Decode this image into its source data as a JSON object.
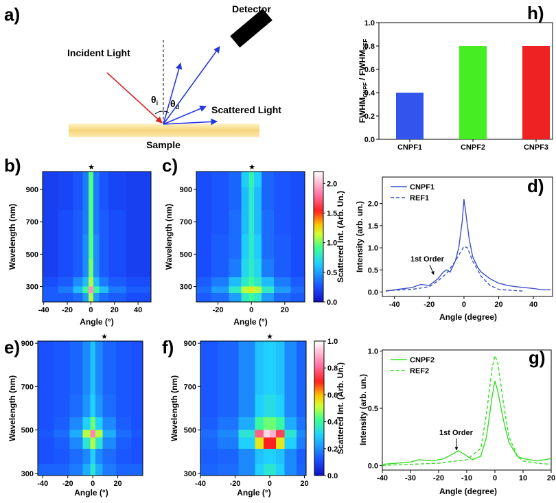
{
  "diagram": {
    "label": "a)",
    "detector": "Detector",
    "incident": "Incident Light",
    "scattered": "Scattered Light",
    "sample": "Sample",
    "theta_i": {
      "symbol": "θ",
      "sub": "i"
    },
    "theta_d": {
      "symbol": "θ",
      "sub": "d"
    }
  },
  "chart_data": [
    {
      "type": "heatmap",
      "label": "b)",
      "marker": "★",
      "x_label": "Angle (°)",
      "y_label": "Wavelength (nm)",
      "xlim": [
        -41,
        51
      ],
      "ylim": [
        205,
        1010
      ],
      "xticks": [
        -40,
        -20,
        0,
        20,
        40
      ],
      "yticks": [
        300,
        500,
        700,
        900
      ],
      "clim": [
        0,
        2.2
      ],
      "x": [
        -35,
        -20,
        -10,
        -4,
        0,
        4,
        10,
        20,
        40
      ],
      "y": [
        240,
        285,
        320,
        400,
        550,
        700,
        850,
        980
      ],
      "z": [
        [
          0.3,
          0.3,
          0.35,
          0.5,
          1.1,
          0.5,
          0.35,
          0.3,
          0.25
        ],
        [
          0.3,
          0.4,
          0.6,
          0.9,
          1.9,
          0.9,
          0.6,
          0.4,
          0.3
        ],
        [
          0.25,
          0.3,
          0.45,
          0.6,
          1.1,
          0.6,
          0.4,
          0.3,
          0.25
        ],
        [
          0.2,
          0.25,
          0.3,
          0.45,
          1.0,
          0.45,
          0.3,
          0.25,
          0.2
        ],
        [
          0.2,
          0.25,
          0.3,
          0.45,
          0.95,
          0.45,
          0.3,
          0.25,
          0.2
        ],
        [
          0.2,
          0.25,
          0.3,
          0.4,
          0.95,
          0.4,
          0.3,
          0.25,
          0.2
        ],
        [
          0.2,
          0.22,
          0.28,
          0.4,
          0.95,
          0.4,
          0.28,
          0.22,
          0.2
        ],
        [
          0.2,
          0.22,
          0.28,
          0.4,
          0.95,
          0.4,
          0.28,
          0.22,
          0.2
        ]
      ]
    },
    {
      "type": "heatmap",
      "label": "c)",
      "marker": "★",
      "x_label": "Angle (°)",
      "y_label": "Wavelength (nm)",
      "xlim": [
        -33,
        32
      ],
      "ylim": [
        205,
        1010
      ],
      "xticks": [
        -20,
        0,
        20
      ],
      "yticks": [
        300,
        500,
        700,
        900
      ],
      "clim": [
        0,
        2.2
      ],
      "colorbar_label": "Scattered Int. (Arb. Un.)",
      "cticks": [
        {
          "value": 0,
          "label": "0.0"
        },
        {
          "value": 0.5,
          "label": "0.5"
        },
        {
          "value": 1,
          "label": "1.0"
        },
        {
          "value": 1.5,
          "label": "1.5"
        },
        {
          "value": 2,
          "label": "2.0"
        }
      ],
      "x": [
        -30,
        -18,
        -9,
        -3,
        0,
        3,
        9,
        18,
        29
      ],
      "y": [
        240,
        285,
        320,
        400,
        550,
        700,
        850,
        980
      ],
      "z": [
        [
          0.3,
          0.35,
          0.5,
          0.8,
          0.9,
          0.8,
          0.5,
          0.35,
          0.3
        ],
        [
          0.35,
          0.5,
          0.8,
          1.1,
          1.2,
          1.1,
          0.8,
          0.5,
          0.35
        ],
        [
          0.3,
          0.4,
          0.6,
          0.8,
          0.9,
          0.8,
          0.6,
          0.4,
          0.3
        ],
        [
          0.25,
          0.3,
          0.4,
          0.7,
          0.8,
          0.7,
          0.4,
          0.3,
          0.25
        ],
        [
          0.25,
          0.3,
          0.35,
          0.65,
          0.8,
          0.65,
          0.35,
          0.3,
          0.25
        ],
        [
          0.25,
          0.28,
          0.35,
          0.6,
          0.8,
          0.6,
          0.35,
          0.28,
          0.25
        ],
        [
          0.25,
          0.28,
          0.33,
          0.6,
          0.8,
          0.6,
          0.33,
          0.28,
          0.25
        ],
        [
          0.25,
          0.28,
          0.33,
          0.65,
          0.85,
          0.65,
          0.33,
          0.28,
          0.25
        ]
      ]
    },
    {
      "type": "line",
      "label": "d)",
      "x_label": "Angle (degree)",
      "y_label": "Intensity (arb. un.)",
      "annotation": "1st Order",
      "xlim": [
        -47,
        51
      ],
      "ylim": [
        -0.1,
        2.6
      ],
      "xticks": [
        -40,
        -20,
        0,
        20,
        40
      ],
      "yticks": [
        {
          "value": 0,
          "label": "0.0"
        },
        {
          "value": 0.5,
          "label": "0.5"
        },
        {
          "value": 1,
          "label": "1.0"
        },
        {
          "value": 1.5,
          "label": "1.5"
        },
        {
          "value": 2,
          "label": "2.0"
        }
      ],
      "series": [
        {
          "name": "CNPF1",
          "color": "#3a4fc9",
          "dashed": false,
          "x": [
            -45,
            -40,
            -30,
            -25,
            -20,
            -15,
            -12,
            -10,
            -8,
            -5,
            -3,
            -1,
            0,
            1,
            3,
            5,
            8,
            10,
            15,
            20,
            25,
            30,
            35,
            40,
            45,
            50
          ],
          "values": [
            0.02,
            0.05,
            0.1,
            0.17,
            0.15,
            0.3,
            0.45,
            0.5,
            0.45,
            0.7,
            1.0,
            1.6,
            2.1,
            1.8,
            1.2,
            0.8,
            0.55,
            0.45,
            0.3,
            0.2,
            0.15,
            0.12,
            0.1,
            0.08,
            0.05,
            0.05
          ]
        },
        {
          "name": "REF1",
          "color": "#3a4fc9",
          "dashed": true,
          "x": [
            -45,
            -30,
            -20,
            -15,
            -10,
            -5,
            0,
            2,
            5,
            10,
            15,
            20,
            30,
            35
          ],
          "values": [
            0.03,
            0.06,
            0.12,
            0.25,
            0.42,
            0.7,
            1.03,
            1.0,
            0.7,
            0.35,
            0.15,
            0.06,
            0.03,
            0.02
          ]
        }
      ]
    },
    {
      "type": "heatmap",
      "label": "e)",
      "marker": "★",
      "x_label": "Angle (°)",
      "y_label": "Wavelength (nm)",
      "xlim": [
        -44,
        40
      ],
      "ylim": [
        290,
        910
      ],
      "xticks": [
        -40,
        -20,
        0,
        20
      ],
      "yticks": [
        300,
        500,
        700,
        900
      ],
      "clim": [
        0,
        1
      ],
      "x": [
        -38,
        -25,
        -12,
        -4,
        0,
        4,
        12,
        25,
        37
      ],
      "y": [
        310,
        380,
        450,
        485,
        520,
        600,
        730,
        870
      ],
      "z": [
        [
          0.15,
          0.15,
          0.18,
          0.25,
          0.35,
          0.25,
          0.18,
          0.15,
          0.15
        ],
        [
          0.12,
          0.13,
          0.16,
          0.2,
          0.3,
          0.2,
          0.16,
          0.13,
          0.12
        ],
        [
          0.12,
          0.14,
          0.2,
          0.35,
          0.5,
          0.35,
          0.2,
          0.14,
          0.12
        ],
        [
          0.13,
          0.16,
          0.25,
          0.5,
          0.85,
          0.5,
          0.25,
          0.16,
          0.13
        ],
        [
          0.12,
          0.14,
          0.2,
          0.3,
          0.45,
          0.3,
          0.2,
          0.14,
          0.12
        ],
        [
          0.12,
          0.13,
          0.16,
          0.22,
          0.3,
          0.22,
          0.16,
          0.13,
          0.12
        ],
        [
          0.12,
          0.13,
          0.15,
          0.2,
          0.28,
          0.2,
          0.15,
          0.13,
          0.12
        ],
        [
          0.12,
          0.13,
          0.15,
          0.2,
          0.28,
          0.2,
          0.15,
          0.13,
          0.12
        ]
      ]
    },
    {
      "type": "heatmap",
      "label": "f)",
      "marker": "★",
      "x_label": "Angle (°)",
      "y_label": "Wavelength (nm)",
      "xlim": [
        -40,
        21
      ],
      "ylim": [
        290,
        910
      ],
      "xticks": [
        -40,
        -20,
        0,
        20
      ],
      "yticks": [
        300,
        500,
        700,
        900
      ],
      "clim": [
        0,
        1
      ],
      "colorbar_label": "Scattered Int. (Arb. Un.)",
      "cticks": [
        {
          "value": 0,
          "label": "0.0"
        },
        {
          "value": 0.2,
          "label": "0.2"
        },
        {
          "value": 0.4,
          "label": "0.4"
        },
        {
          "value": 0.6,
          "label": "0.6"
        },
        {
          "value": 0.8,
          "label": "0.8"
        },
        {
          "value": 1,
          "label": "1.0"
        }
      ],
      "x": [
        -36,
        -24,
        -12,
        -5,
        -2,
        2,
        5,
        12,
        19
      ],
      "y": [
        310,
        380,
        450,
        485,
        520,
        600,
        730,
        870
      ],
      "z": [
        [
          0.15,
          0.16,
          0.2,
          0.3,
          0.35,
          0.35,
          0.3,
          0.2,
          0.15
        ],
        [
          0.14,
          0.15,
          0.2,
          0.28,
          0.3,
          0.3,
          0.28,
          0.2,
          0.14
        ],
        [
          0.15,
          0.18,
          0.3,
          0.55,
          0.7,
          0.7,
          0.55,
          0.3,
          0.18
        ],
        [
          0.16,
          0.2,
          0.35,
          0.8,
          0.95,
          0.9,
          0.75,
          0.35,
          0.2
        ],
        [
          0.14,
          0.17,
          0.25,
          0.4,
          0.45,
          0.45,
          0.4,
          0.25,
          0.17
        ],
        [
          0.13,
          0.15,
          0.2,
          0.3,
          0.33,
          0.33,
          0.3,
          0.2,
          0.15
        ],
        [
          0.13,
          0.15,
          0.2,
          0.28,
          0.3,
          0.3,
          0.28,
          0.2,
          0.15
        ],
        [
          0.13,
          0.15,
          0.2,
          0.28,
          0.3,
          0.3,
          0.28,
          0.2,
          0.15
        ]
      ]
    },
    {
      "type": "line",
      "label": "g)",
      "x_label": "Angle (degree)",
      "y_label": "Intensity (arb. un.)",
      "annotation": "1st Order",
      "xlim": [
        -40,
        20
      ],
      "ylim": [
        -0.04,
        1.01
      ],
      "xticks": [
        -40,
        -30,
        -20,
        -10,
        0,
        10,
        20
      ],
      "yticks": [
        {
          "value": 0,
          "label": "0.0"
        },
        {
          "value": 0.5,
          "label": "0.5"
        },
        {
          "value": 1,
          "label": "1.0"
        }
      ],
      "series": [
        {
          "name": "CNPF2",
          "color": "#33dd22",
          "dashed": false,
          "x": [
            -40,
            -35,
            -30,
            -27,
            -22,
            -18,
            -15,
            -13,
            -11,
            -8,
            -5,
            -3,
            -1,
            0,
            1,
            3,
            5,
            8,
            10,
            15,
            20
          ],
          "values": [
            0.01,
            0.02,
            0.03,
            0.05,
            0.04,
            0.06,
            0.1,
            0.13,
            0.1,
            0.05,
            0.08,
            0.25,
            0.6,
            0.74,
            0.65,
            0.4,
            0.2,
            0.08,
            0.06,
            0.04,
            0.06
          ]
        },
        {
          "name": "REF2",
          "color": "#33dd22",
          "dashed": true,
          "x": [
            -40,
            -20,
            -10,
            -5,
            -3,
            -1,
            0,
            1,
            3,
            5,
            8,
            10,
            15,
            20
          ],
          "values": [
            0.0,
            0.02,
            0.05,
            0.15,
            0.45,
            0.85,
            0.96,
            0.9,
            0.55,
            0.25,
            0.08,
            0.04,
            0.02,
            0.01
          ]
        }
      ]
    },
    {
      "type": "bar",
      "label": "h)",
      "y_label": {
        "text": "FWHM",
        "sub": "CNPF",
        "text2": " / FWHM",
        "sub2": "REF"
      },
      "categories": [
        "CNPF1",
        "CNPF2",
        "CNPF3"
      ],
      "values": [
        0.4,
        0.8,
        0.8
      ],
      "colors": [
        "#3355ee",
        "#44ee22",
        "#ee2222"
      ],
      "ylim": [
        0,
        1
      ],
      "yticks": [
        {
          "value": 0,
          "label": "0.0"
        },
        {
          "value": 0.2,
          "label": "0.2"
        },
        {
          "value": 0.4,
          "label": "0.4"
        },
        {
          "value": 0.6,
          "label": "0.6"
        },
        {
          "value": 0.8,
          "label": "0.8"
        },
        {
          "value": 1,
          "label": "1.0"
        }
      ]
    }
  ]
}
